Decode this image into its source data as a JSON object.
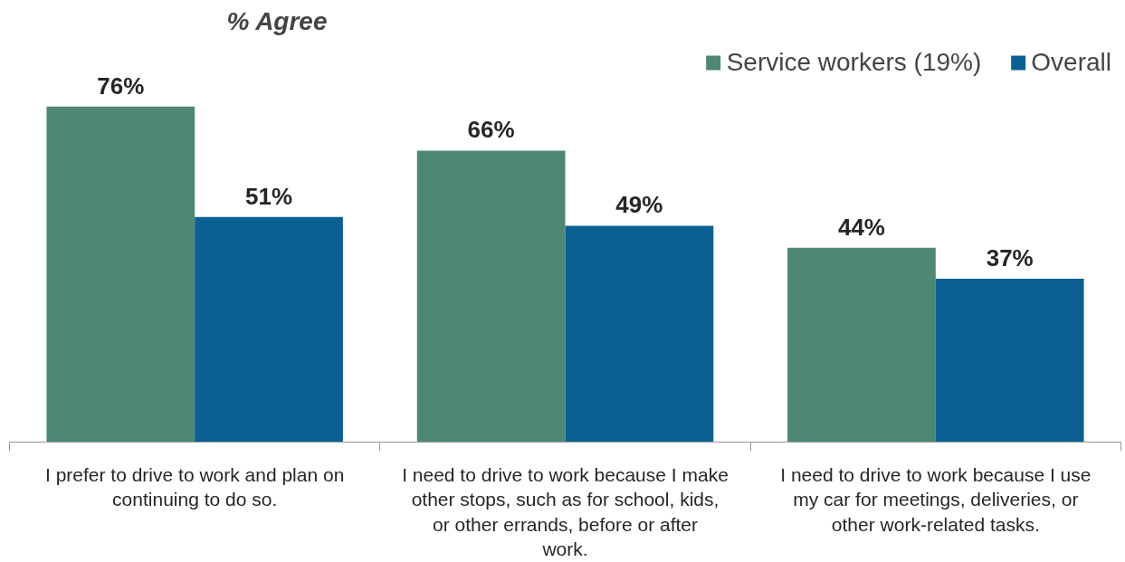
{
  "chart_data": {
    "type": "bar",
    "title": "% Agree",
    "categories": [
      "I prefer to drive to work and plan on continuing to do so.",
      "I need to drive to work because I make other stops, such as for school, kids, or other errands, before or after work.",
      "I need to drive to work because I use my car for meetings, deliveries, or other work-related tasks."
    ],
    "series": [
      {
        "name": "Service workers (19%)",
        "color": "#4e8872",
        "values": [
          76,
          66,
          44
        ],
        "value_labels": [
          "76%",
          "66%",
          "44%"
        ]
      },
      {
        "name": "Overall",
        "color": "#0a6092",
        "values": [
          51,
          49,
          37
        ],
        "value_labels": [
          "51%",
          "49%",
          "37%"
        ]
      }
    ],
    "tick_labels": "x",
    "legend": "top right",
    "grid": false
  }
}
